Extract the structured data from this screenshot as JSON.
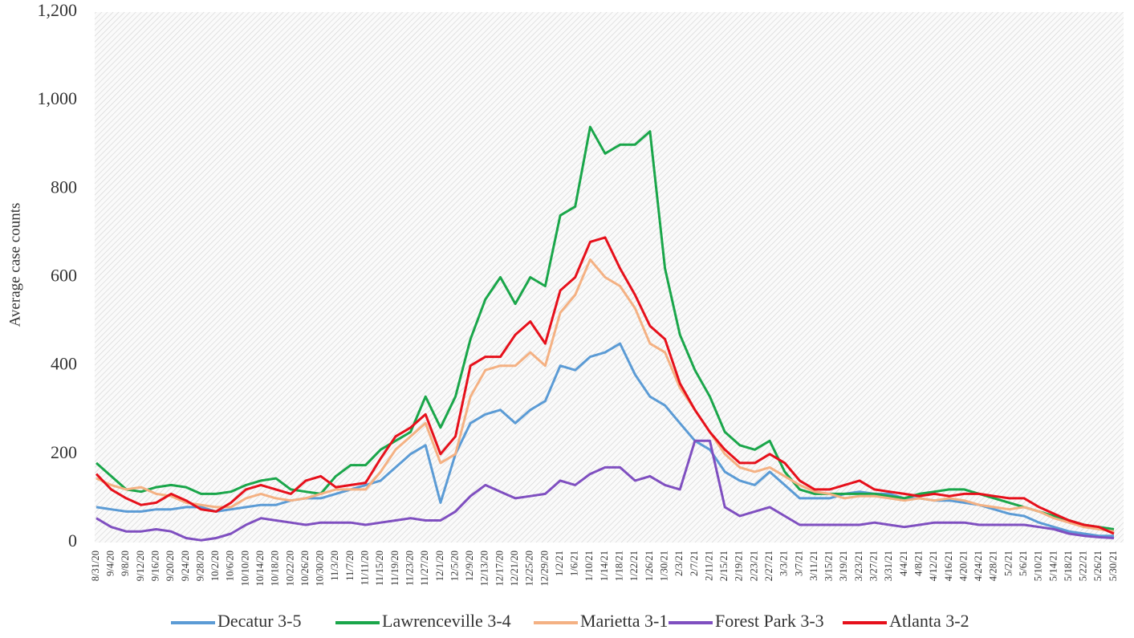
{
  "chart_data": {
    "type": "line",
    "y_label": "Average case counts",
    "categories": [
      "8/31/20",
      "9/4/20",
      "9/8/20",
      "9/12/20",
      "9/16/20",
      "9/20/20",
      "9/24/20",
      "9/28/20",
      "10/2/20",
      "10/6/20",
      "10/10/20",
      "10/14/20",
      "10/18/20",
      "10/22/20",
      "10/26/20",
      "10/30/20",
      "11/3/20",
      "11/7/20",
      "11/11/20",
      "11/15/20",
      "11/19/20",
      "11/23/20",
      "11/27/20",
      "12/1/20",
      "12/5/20",
      "12/9/20",
      "12/13/20",
      "12/17/20",
      "12/21/20",
      "12/25/20",
      "12/29/20",
      "1/2/21",
      "1/6/21",
      "1/10/21",
      "1/14/21",
      "1/18/21",
      "1/22/21",
      "1/26/21",
      "1/30/21",
      "2/3/21",
      "2/7/21",
      "2/11/21",
      "2/15/21",
      "2/19/21",
      "2/23/21",
      "2/27/21",
      "3/3/21",
      "3/7/21",
      "3/11/21",
      "3/15/21",
      "3/19/21",
      "3/23/21",
      "3/27/21",
      "3/31/21",
      "4/4/21",
      "4/8/21",
      "4/12/21",
      "4/16/21",
      "4/20/21",
      "4/24/21",
      "4/28/21",
      "5/2/21",
      "5/6/21",
      "5/10/21",
      "5/14/21",
      "5/18/21",
      "5/22/21",
      "5/26/21",
      "5/30/21"
    ],
    "series": [
      {
        "name": "Decatur 3-5",
        "color": "#5b9bd5",
        "values": [
          80,
          75,
          70,
          70,
          75,
          75,
          80,
          80,
          70,
          75,
          80,
          85,
          85,
          95,
          100,
          100,
          110,
          120,
          130,
          140,
          170,
          200,
          220,
          90,
          200,
          270,
          290,
          300,
          270,
          300,
          320,
          400,
          390,
          420,
          430,
          450,
          380,
          330,
          310,
          270,
          230,
          210,
          160,
          140,
          130,
          160,
          130,
          100,
          100,
          100,
          110,
          115,
          110,
          110,
          100,
          100,
          95,
          95,
          90,
          85,
          75,
          65,
          60,
          45,
          35,
          25,
          20,
          15,
          15
        ]
      },
      {
        "name": "Lawrenceville 3-4",
        "color": "#1aa64a",
        "values": [
          180,
          150,
          120,
          115,
          125,
          130,
          125,
          110,
          110,
          115,
          130,
          140,
          145,
          120,
          115,
          110,
          150,
          175,
          175,
          210,
          230,
          250,
          330,
          260,
          330,
          460,
          550,
          600,
          540,
          600,
          580,
          740,
          760,
          940,
          880,
          900,
          900,
          930,
          620,
          470,
          390,
          330,
          250,
          220,
          210,
          230,
          160,
          120,
          110,
          110,
          110,
          110,
          110,
          105,
          100,
          110,
          115,
          120,
          120,
          110,
          100,
          90,
          80,
          70,
          60,
          50,
          40,
          35,
          30
        ]
      },
      {
        "name": "Marietta 3-1",
        "color": "#f4b183",
        "values": [
          145,
          130,
          120,
          125,
          110,
          105,
          90,
          85,
          80,
          80,
          100,
          110,
          100,
          95,
          100,
          110,
          120,
          120,
          120,
          160,
          210,
          240,
          270,
          180,
          200,
          330,
          390,
          400,
          400,
          430,
          400,
          520,
          560,
          640,
          600,
          580,
          530,
          450,
          430,
          350,
          300,
          250,
          200,
          170,
          160,
          170,
          150,
          130,
          115,
          110,
          100,
          105,
          105,
          100,
          95,
          100,
          95,
          100,
          95,
          85,
          80,
          75,
          80,
          70,
          55,
          45,
          35,
          30,
          25
        ]
      },
      {
        "name": "Forest Park 3-3",
        "color": "#7f4fc0",
        "values": [
          55,
          35,
          25,
          25,
          30,
          25,
          10,
          5,
          10,
          20,
          40,
          55,
          50,
          45,
          40,
          45,
          45,
          45,
          40,
          45,
          50,
          55,
          50,
          50,
          70,
          105,
          130,
          115,
          100,
          105,
          110,
          140,
          130,
          155,
          170,
          170,
          140,
          150,
          130,
          120,
          230,
          230,
          80,
          60,
          70,
          80,
          60,
          40,
          40,
          40,
          40,
          40,
          45,
          40,
          35,
          40,
          45,
          45,
          45,
          40,
          40,
          40,
          40,
          35,
          30,
          20,
          15,
          12,
          10
        ]
      },
      {
        "name": "Atlanta 3-2",
        "color": "#e6101b",
        "values": [
          155,
          120,
          100,
          85,
          90,
          110,
          95,
          75,
          70,
          90,
          120,
          130,
          120,
          110,
          140,
          150,
          125,
          130,
          135,
          190,
          240,
          260,
          290,
          200,
          240,
          400,
          420,
          420,
          470,
          500,
          450,
          570,
          600,
          680,
          690,
          620,
          560,
          490,
          460,
          360,
          300,
          250,
          210,
          180,
          180,
          200,
          180,
          140,
          120,
          120,
          130,
          140,
          120,
          115,
          110,
          105,
          110,
          105,
          110,
          110,
          105,
          100,
          100,
          80,
          65,
          50,
          40,
          35,
          20
        ]
      }
    ],
    "ylim": [
      0,
      1200
    ],
    "yticks": [
      0,
      200,
      400,
      600,
      800,
      {
        "value": 1000,
        "label": "1,000"
      },
      {
        "value": 1200,
        "label": "1,200"
      }
    ],
    "grid": false,
    "legend": "bottom"
  }
}
